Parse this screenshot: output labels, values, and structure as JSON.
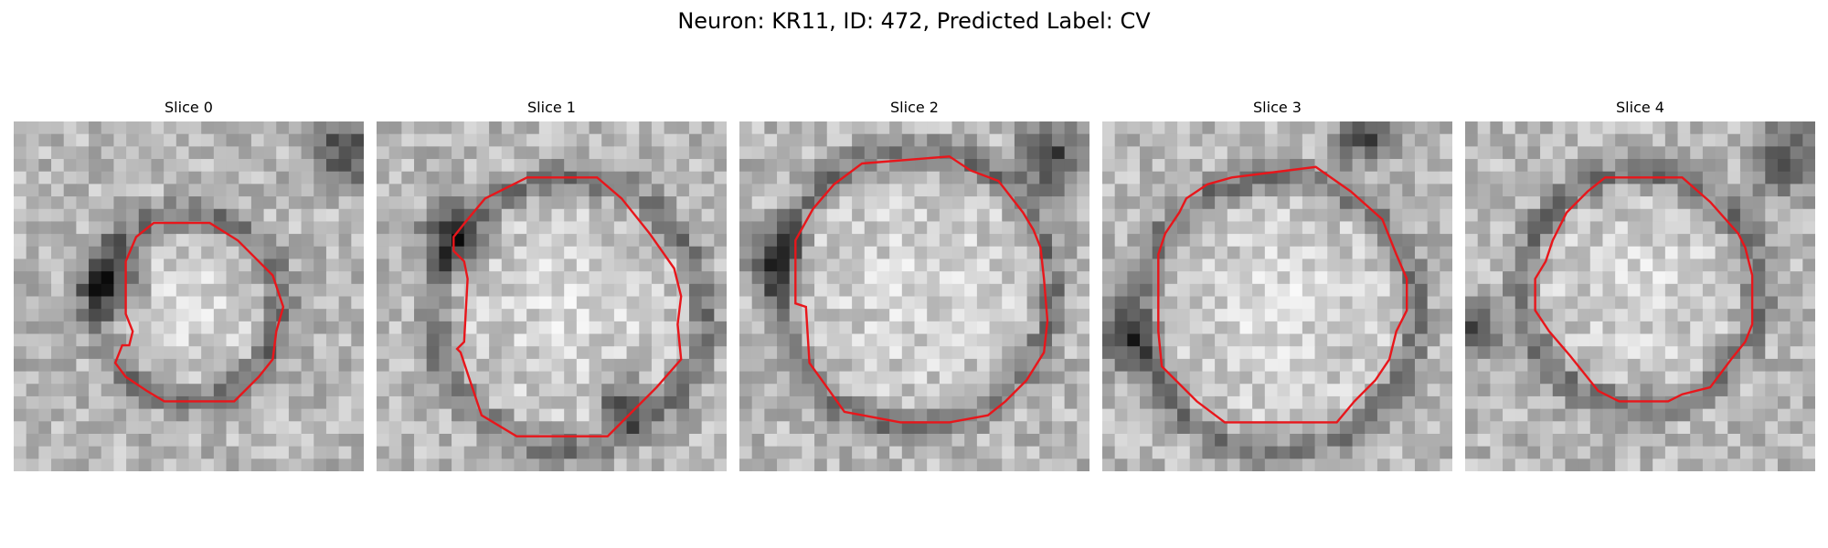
{
  "figure": {
    "title": "Neuron: KR11, ID: 472, Predicted Label: CV",
    "contour_color": "#e8161b",
    "colormap": "gray",
    "panels": [
      {
        "title": "Slice 0"
      },
      {
        "title": "Slice 1"
      },
      {
        "title": "Slice 2"
      },
      {
        "title": "Slice 3"
      },
      {
        "title": "Slice 4"
      }
    ]
  }
}
